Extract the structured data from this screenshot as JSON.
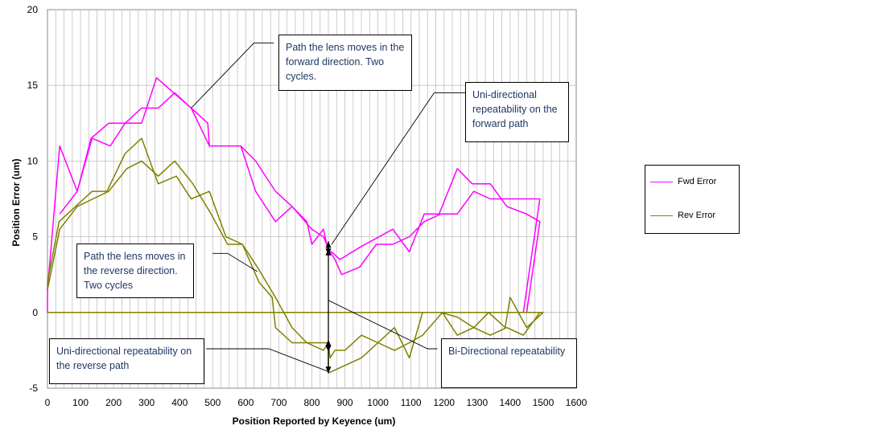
{
  "chart_data": {
    "type": "line",
    "title": "",
    "xlabel": "Position Reported by Keyence (um)",
    "ylabel": "Position Error (um)",
    "xlim": [
      0,
      1600
    ],
    "ylim": [
      -5,
      20
    ],
    "x_ticks": [
      "0",
      "100",
      "200",
      "300",
      "400",
      "500",
      "600",
      "700",
      "800",
      "900",
      "1000",
      "1100",
      "1200",
      "1300",
      "1400",
      "1500",
      "1600"
    ],
    "y_ticks": [
      "-5",
      "0",
      "5",
      "10",
      "15",
      "20"
    ],
    "grid": true,
    "legend_position": "right",
    "series": [
      {
        "name": "Fwd Error",
        "color": "#ff00ff",
        "points": [
          [
            0,
            0
          ],
          [
            37,
            0
          ],
          [
            37,
            0
          ],
          [
            0,
            0
          ],
          [
            0,
            1.5
          ],
          [
            37,
            11
          ],
          [
            90,
            8
          ],
          [
            132,
            11.5
          ],
          [
            185,
            12.5
          ],
          [
            285,
            12.5
          ],
          [
            330,
            15.5
          ],
          [
            435,
            13.5
          ],
          [
            485,
            12.5
          ],
          [
            490,
            11
          ],
          [
            585,
            11
          ],
          [
            630,
            8
          ],
          [
            690,
            6
          ],
          [
            740,
            7
          ],
          [
            785,
            6
          ],
          [
            800,
            4.5
          ],
          [
            835,
            5.5
          ],
          [
            850,
            4
          ],
          [
            860,
            4
          ],
          [
            885,
            3.5
          ],
          [
            945,
            4.3
          ],
          [
            1045,
            5.5
          ],
          [
            1095,
            4
          ],
          [
            1140,
            6.5
          ],
          [
            1185,
            6.5
          ],
          [
            1240,
            9.5
          ],
          [
            1285,
            8.5
          ],
          [
            1340,
            8.5
          ],
          [
            1390,
            7
          ],
          [
            1450,
            6.5
          ],
          [
            1490,
            6
          ],
          [
            1450,
            0
          ],
          [
            1440,
            0
          ],
          [
            1490,
            7.5
          ],
          [
            1390,
            7.5
          ],
          [
            1340,
            7.5
          ],
          [
            1290,
            8
          ],
          [
            1240,
            6.5
          ],
          [
            1190,
            6.5
          ],
          [
            1140,
            6
          ],
          [
            1095,
            5
          ],
          [
            1045,
            4.5
          ],
          [
            995,
            4.5
          ],
          [
            945,
            3
          ],
          [
            890,
            2.5
          ],
          [
            870,
            3.5
          ],
          [
            855,
            4
          ],
          [
            835,
            5
          ],
          [
            800,
            5.5
          ],
          [
            740,
            7
          ],
          [
            690,
            8
          ],
          [
            630,
            10
          ],
          [
            585,
            11
          ],
          [
            540,
            11
          ],
          [
            490,
            11
          ],
          [
            435,
            13.5
          ],
          [
            385,
            14.5
          ],
          [
            335,
            13.5
          ],
          [
            285,
            13.5
          ],
          [
            235,
            12.5
          ],
          [
            190,
            11
          ],
          [
            135,
            11.5
          ],
          [
            90,
            8
          ],
          [
            37,
            6.5
          ]
        ]
      },
      {
        "name": "Rev Error",
        "color": "#808000",
        "points": [
          [
            0,
            0
          ],
          [
            1500,
            0
          ],
          [
            1450,
            -1
          ],
          [
            1400,
            1
          ],
          [
            1385,
            -1
          ],
          [
            1335,
            0
          ],
          [
            1290,
            -1
          ],
          [
            1240,
            -0.3
          ],
          [
            1190,
            0
          ],
          [
            1135,
            0
          ],
          [
            1095,
            -3
          ],
          [
            1050,
            -1
          ],
          [
            1000,
            -2
          ],
          [
            950,
            -3
          ],
          [
            850,
            -4
          ],
          [
            850,
            -2
          ],
          [
            800,
            -2
          ],
          [
            740,
            -2
          ],
          [
            690,
            -1
          ],
          [
            680,
            1
          ],
          [
            640,
            2
          ],
          [
            590,
            4.5
          ],
          [
            540,
            5
          ],
          [
            490,
            8
          ],
          [
            435,
            7.5
          ],
          [
            390,
            9
          ],
          [
            335,
            8.5
          ],
          [
            285,
            11.5
          ],
          [
            235,
            10.5
          ],
          [
            180,
            8
          ],
          [
            135,
            8
          ],
          [
            85,
            7
          ],
          [
            35,
            6
          ],
          [
            0,
            2
          ],
          [
            0,
            1.5
          ],
          [
            37,
            5.5
          ],
          [
            90,
            7
          ],
          [
            185,
            8
          ],
          [
            240,
            9.5
          ],
          [
            285,
            10
          ],
          [
            335,
            9
          ],
          [
            385,
            10
          ],
          [
            440,
            8.5
          ],
          [
            495,
            6.5
          ],
          [
            545,
            4.5
          ],
          [
            590,
            4.5
          ],
          [
            635,
            3
          ],
          [
            690,
            1
          ],
          [
            740,
            -1
          ],
          [
            785,
            -2
          ],
          [
            835,
            -2.5
          ],
          [
            850,
            -2
          ],
          [
            855,
            -3
          ],
          [
            870,
            -2.5
          ],
          [
            900,
            -2.5
          ],
          [
            950,
            -1.5
          ],
          [
            1000,
            -2
          ],
          [
            1050,
            -2.5
          ],
          [
            1095,
            -2
          ],
          [
            1135,
            -1.5
          ],
          [
            1195,
            0
          ],
          [
            1240,
            -1.5
          ],
          [
            1290,
            -1
          ],
          [
            1340,
            -1.5
          ],
          [
            1390,
            -1
          ],
          [
            1440,
            -1.5
          ],
          [
            1490,
            0
          ],
          [
            1500,
            0
          ]
        ]
      }
    ],
    "annotations": [
      {
        "text": "Path the lens moves in the forward direction. Two cycles."
      },
      {
        "text": "Uni-directional repeatability on the forward path"
      },
      {
        "text": "Path the lens moves in the reverse direction. Two cycles"
      },
      {
        "text": "Uni-directional repeatability on the reverse path"
      },
      {
        "text": "Bi-Directional repeatability"
      }
    ]
  }
}
